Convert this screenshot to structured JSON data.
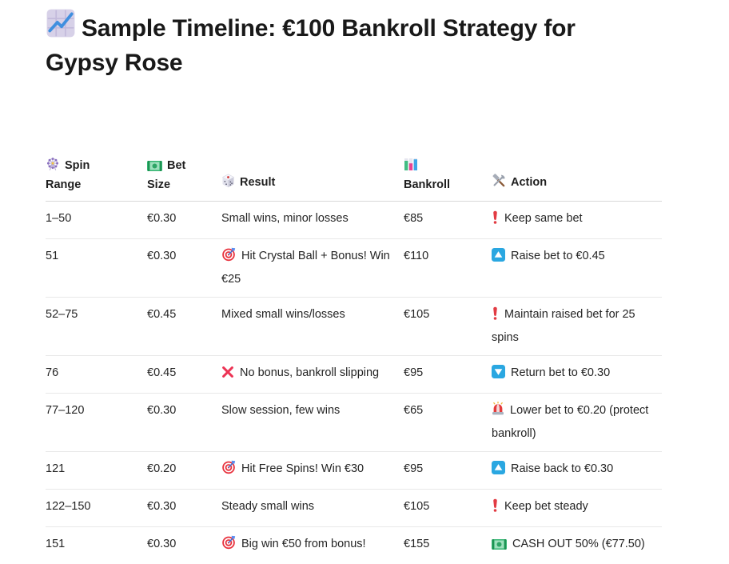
{
  "page": {
    "title": {
      "icon": "chart-increasing-icon",
      "text": "Sample Timeline: €100 Bankroll Strategy for Gypsy Rose"
    }
  },
  "table": {
    "headers": [
      {
        "icon": "ferris-wheel-icon",
        "label": "Spin Range"
      },
      {
        "icon": "money-banknote-icon",
        "label": "Bet Size"
      },
      {
        "icon": "game-die-icon",
        "label": "Result"
      },
      {
        "icon": "bar-chart-icon",
        "label": "Bankroll"
      },
      {
        "icon": "hammer-wrench-icon",
        "label": "Action"
      }
    ],
    "rows": [
      {
        "spin_range": "1–50",
        "bet_size": "€0.30",
        "result": {
          "icon": null,
          "text": "Small wins, minor losses"
        },
        "bankroll": "€85",
        "action": {
          "icon": "red-exclamation-icon",
          "text": "Keep same bet"
        }
      },
      {
        "spin_range": "51",
        "bet_size": "€0.30",
        "result": {
          "icon": "target-icon",
          "text": "Hit Crystal Ball + Bonus! Win €25"
        },
        "bankroll": "€110",
        "action": {
          "icon": "up-button-icon",
          "text": "Raise bet to €0.45"
        }
      },
      {
        "spin_range": "52–75",
        "bet_size": "€0.45",
        "result": {
          "icon": null,
          "text": "Mixed small wins/losses"
        },
        "bankroll": "€105",
        "action": {
          "icon": "red-exclamation-icon",
          "text": "Maintain raised bet for 25 spins"
        }
      },
      {
        "spin_range": "76",
        "bet_size": "€0.45",
        "result": {
          "icon": "cross-mark-icon",
          "text": "No bonus, bankroll slipping"
        },
        "bankroll": "€95",
        "action": {
          "icon": "down-button-icon",
          "text": "Return bet to €0.30"
        }
      },
      {
        "spin_range": "77–120",
        "bet_size": "€0.30",
        "result": {
          "icon": null,
          "text": "Slow session, few wins"
        },
        "bankroll": "€65",
        "action": {
          "icon": "police-light-icon",
          "text": "Lower bet to €0.20 (protect bankroll)"
        }
      },
      {
        "spin_range": "121",
        "bet_size": "€0.20",
        "result": {
          "icon": "target-icon",
          "text": "Hit Free Spins! Win €30"
        },
        "bankroll": "€95",
        "action": {
          "icon": "up-button-icon",
          "text": "Raise back to €0.30"
        }
      },
      {
        "spin_range": "122–150",
        "bet_size": "€0.30",
        "result": {
          "icon": null,
          "text": "Steady small wins"
        },
        "bankroll": "€105",
        "action": {
          "icon": "red-exclamation-icon",
          "text": "Keep bet steady"
        }
      },
      {
        "spin_range": "151",
        "bet_size": "€0.30",
        "result": {
          "icon": "target-icon",
          "text": "Big win €50 from bonus!"
        },
        "bankroll": "€155",
        "action": {
          "icon": "money-banknote-icon",
          "text": "CASH OUT 50% (€77.50)"
        }
      }
    ]
  },
  "colors": {
    "accent_blue": "#2aa7e1",
    "alert_red": "#e23b43",
    "success_green": "#35b572",
    "text": "#242424",
    "divider": "#e8e8e8"
  }
}
